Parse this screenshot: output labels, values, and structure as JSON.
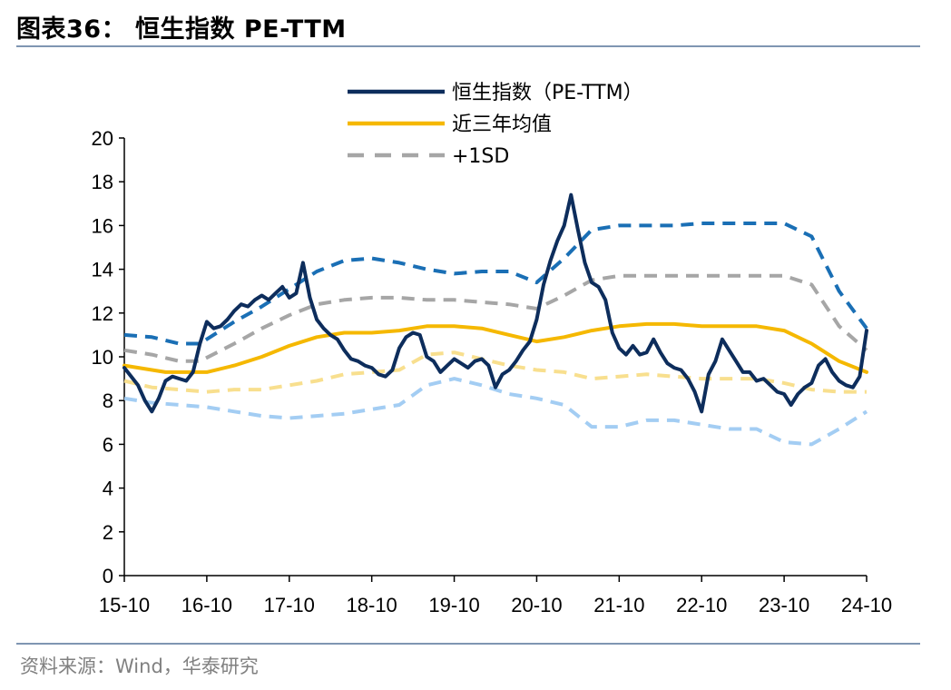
{
  "header": {
    "title": "图表36：  恒生指数 PE-TTM"
  },
  "footer": {
    "source": "资料来源：Wind，华泰研究"
  },
  "colors": {
    "pe": "#0d2d5c",
    "mean": "#f5b800",
    "sd1_legend": "#a6a6a6",
    "upper2": "#1a6fb5",
    "upper1": "#a6a6a6",
    "lower1": "#f8df8e",
    "lower2": "#a3cdf3"
  },
  "chart_data": {
    "type": "line",
    "title": "",
    "xlabel": "",
    "ylabel": "",
    "xlim": [
      0,
      108
    ],
    "ylim": [
      0,
      20
    ],
    "yticks": [
      0,
      2,
      4,
      6,
      8,
      10,
      12,
      14,
      16,
      18,
      20
    ],
    "xticks": [
      {
        "pos": 0,
        "label": "15-10"
      },
      {
        "pos": 12,
        "label": "16-10"
      },
      {
        "pos": 24,
        "label": "17-10"
      },
      {
        "pos": 36,
        "label": "18-10"
      },
      {
        "pos": 48,
        "label": "19-10"
      },
      {
        "pos": 60,
        "label": "20-10"
      },
      {
        "pos": 72,
        "label": "21-10"
      },
      {
        "pos": 84,
        "label": "22-10"
      },
      {
        "pos": 96,
        "label": "23-10"
      },
      {
        "pos": 108,
        "label": "24-10"
      }
    ],
    "legend": {
      "position": "top-center"
    },
    "series": [
      {
        "key": "pe",
        "name": "恒生指数（PE-TTM）",
        "legend": true,
        "dash": "solid",
        "x": [
          0,
          1,
          2,
          3,
          4,
          5,
          6,
          7,
          8,
          9,
          10,
          11,
          12,
          13,
          14,
          15,
          16,
          17,
          18,
          19,
          20,
          21,
          22,
          23,
          24,
          25,
          26,
          27,
          28,
          29,
          30,
          31,
          32,
          33,
          34,
          35,
          36,
          37,
          38,
          39,
          40,
          41,
          42,
          43,
          44,
          45,
          46,
          47,
          48,
          49,
          50,
          51,
          52,
          53,
          54,
          55,
          56,
          57,
          58,
          59,
          60,
          61,
          62,
          63,
          64,
          65,
          66,
          67,
          68,
          69,
          70,
          71,
          72,
          73,
          74,
          75,
          76,
          77,
          78,
          79,
          80,
          81,
          82,
          83,
          84,
          85,
          86,
          87,
          88,
          89,
          90,
          91,
          92,
          93,
          94,
          95,
          96,
          97,
          98,
          99,
          100,
          101,
          102,
          103,
          104,
          105,
          106,
          107,
          108
        ],
        "values": [
          9.5,
          9.1,
          8.7,
          8.0,
          7.5,
          8.1,
          8.9,
          9.1,
          9.0,
          8.9,
          9.3,
          10.6,
          11.6,
          11.3,
          11.4,
          11.7,
          12.1,
          12.4,
          12.3,
          12.6,
          12.8,
          12.6,
          12.9,
          13.2,
          12.7,
          12.9,
          14.3,
          12.7,
          11.7,
          11.3,
          11.0,
          10.8,
          10.3,
          9.9,
          9.8,
          9.6,
          9.5,
          9.2,
          9.1,
          9.4,
          10.4,
          10.9,
          11.1,
          11.0,
          10.0,
          9.8,
          9.3,
          9.6,
          9.9,
          9.7,
          9.5,
          9.8,
          9.9,
          9.6,
          8.6,
          9.2,
          9.4,
          9.8,
          10.3,
          10.7,
          11.7,
          13.3,
          14.4,
          15.3,
          16.0,
          17.4,
          15.8,
          14.3,
          13.4,
          13.2,
          12.6,
          11.1,
          10.4,
          10.1,
          10.5,
          10.1,
          10.2,
          10.8,
          10.2,
          9.7,
          9.5,
          9.4,
          9.0,
          8.4,
          7.5,
          9.2,
          9.8,
          10.8,
          10.3,
          9.8,
          9.3,
          9.3,
          8.9,
          9.0,
          8.7,
          8.4,
          8.3,
          7.8,
          8.3,
          8.6,
          8.8,
          9.6,
          9.9,
          9.3,
          8.9,
          8.7,
          8.6,
          9.1,
          11.2
        ]
      },
      {
        "key": "mean",
        "name": "近三年均值",
        "legend": true,
        "dash": "solid",
        "x": [
          0,
          6,
          12,
          16,
          20,
          24,
          28,
          32,
          36,
          40,
          44,
          48,
          52,
          56,
          60,
          64,
          68,
          72,
          76,
          80,
          84,
          88,
          92,
          96,
          100,
          104,
          108
        ],
        "values": [
          9.6,
          9.3,
          9.3,
          9.6,
          10.0,
          10.5,
          10.9,
          11.1,
          11.1,
          11.2,
          11.4,
          11.4,
          11.3,
          11.0,
          10.7,
          10.9,
          11.2,
          11.4,
          11.5,
          11.5,
          11.4,
          11.4,
          11.4,
          11.2,
          10.6,
          9.8,
          9.3
        ]
      },
      {
        "key": "sd1_legend",
        "name": "+1SD",
        "legend": true,
        "dash": "dashed"
      },
      {
        "key": "upper2",
        "legend": false,
        "dash": "dashed",
        "x": [
          0,
          4,
          8,
          11,
          16,
          20,
          24,
          28,
          32,
          36,
          40,
          44,
          48,
          52,
          56,
          60,
          64,
          68,
          72,
          76,
          80,
          84,
          88,
          92,
          96,
          100,
          104,
          108
        ],
        "values": [
          11.0,
          10.9,
          10.6,
          10.6,
          11.6,
          12.3,
          13.1,
          13.9,
          14.4,
          14.5,
          14.3,
          14.0,
          13.8,
          13.9,
          13.9,
          13.4,
          14.5,
          15.8,
          16.0,
          16.0,
          16.0,
          16.1,
          16.1,
          16.1,
          16.1,
          15.5,
          13.0,
          11.3
        ]
      },
      {
        "key": "upper1",
        "legend": false,
        "dash": "dashed",
        "x": [
          0,
          4,
          8,
          11,
          16,
          20,
          24,
          28,
          32,
          36,
          40,
          44,
          48,
          52,
          56,
          60,
          64,
          68,
          72,
          76,
          80,
          84,
          88,
          92,
          96,
          100,
          104,
          108
        ],
        "values": [
          10.3,
          10.1,
          9.8,
          9.8,
          10.6,
          11.3,
          11.9,
          12.4,
          12.6,
          12.7,
          12.7,
          12.6,
          12.6,
          12.5,
          12.4,
          12.2,
          12.8,
          13.5,
          13.7,
          13.7,
          13.7,
          13.7,
          13.7,
          13.7,
          13.7,
          13.3,
          11.4,
          10.3
        ]
      },
      {
        "key": "lower1",
        "legend": false,
        "dash": "dashed",
        "x": [
          0,
          4,
          8,
          12,
          16,
          20,
          24,
          28,
          32,
          36,
          40,
          44,
          48,
          52,
          56,
          60,
          64,
          68,
          72,
          76,
          80,
          84,
          88,
          92,
          96,
          100,
          104,
          108
        ],
        "values": [
          8.9,
          8.6,
          8.5,
          8.4,
          8.5,
          8.5,
          8.7,
          8.9,
          9.2,
          9.3,
          9.4,
          10.1,
          10.2,
          9.9,
          9.6,
          9.4,
          9.3,
          9.0,
          9.1,
          9.2,
          9.1,
          9.0,
          9.0,
          9.0,
          8.8,
          8.5,
          8.4,
          8.4
        ]
      },
      {
        "key": "lower2",
        "legend": false,
        "dash": "dashed",
        "x": [
          0,
          4,
          8,
          12,
          16,
          20,
          24,
          28,
          32,
          36,
          40,
          44,
          48,
          52,
          56,
          60,
          64,
          68,
          72,
          76,
          80,
          84,
          88,
          92,
          96,
          100,
          104,
          108
        ],
        "values": [
          8.1,
          7.9,
          7.8,
          7.7,
          7.5,
          7.3,
          7.2,
          7.3,
          7.4,
          7.6,
          7.8,
          8.7,
          9.0,
          8.7,
          8.3,
          8.1,
          7.8,
          6.8,
          6.8,
          7.1,
          7.1,
          6.9,
          6.7,
          6.7,
          6.1,
          6.0,
          6.7,
          7.5
        ]
      }
    ]
  }
}
